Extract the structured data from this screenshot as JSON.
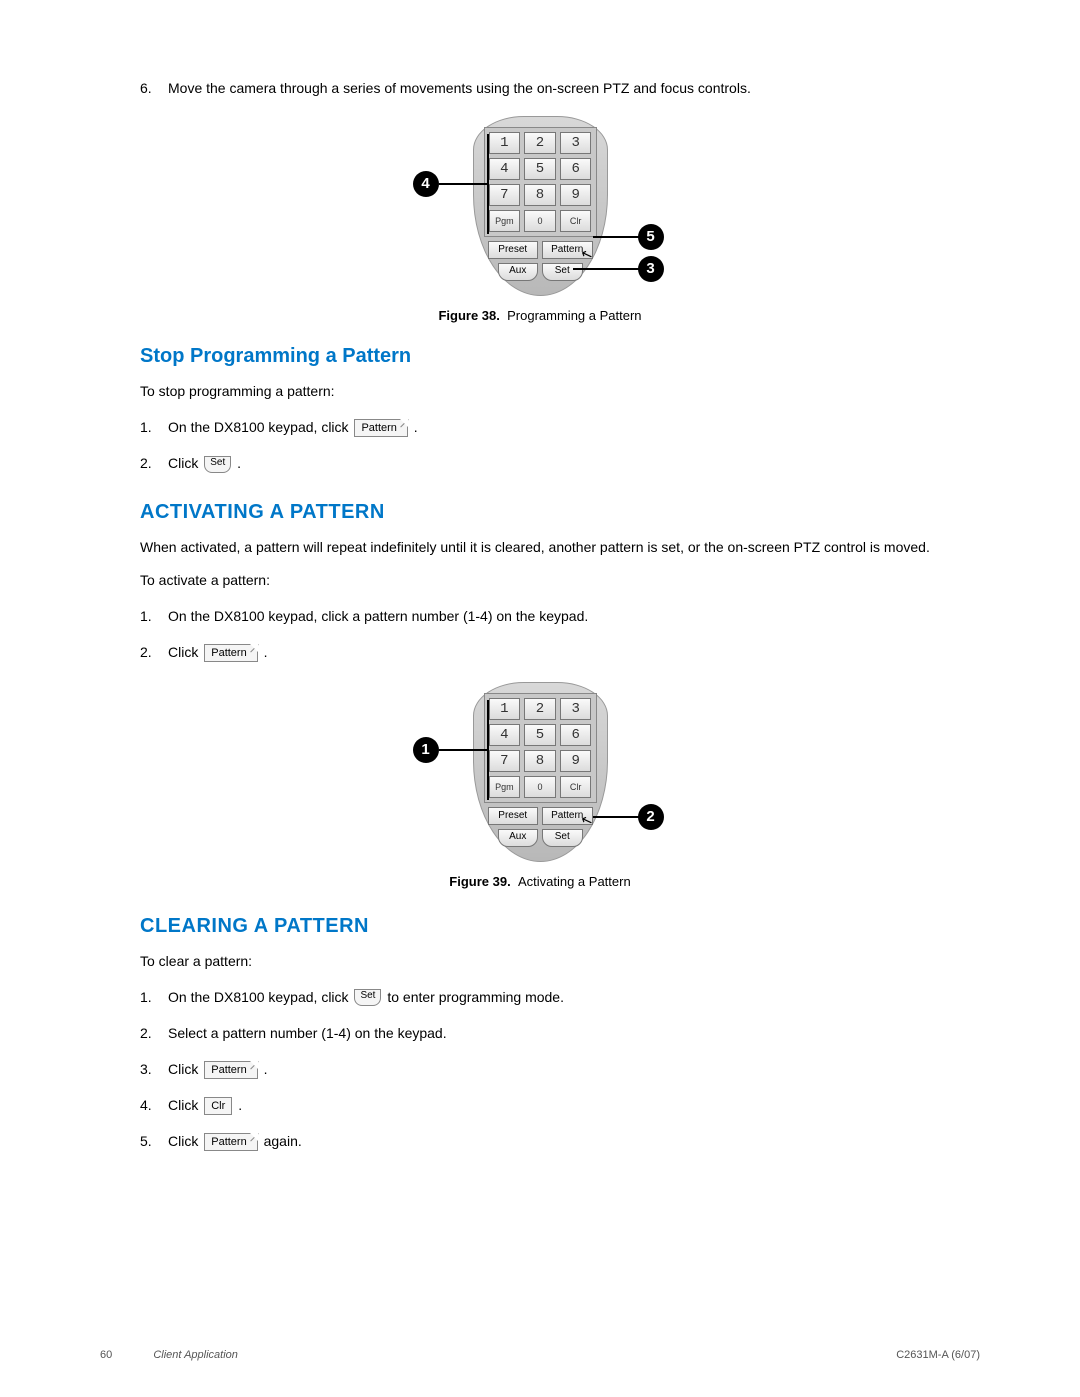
{
  "step6": {
    "num": "6.",
    "text": "Move the camera through a series of movements using the on-screen PTZ and focus controls."
  },
  "fig38": {
    "label": "Figure 38.",
    "caption": "Programming a Pattern",
    "callouts": [
      "4",
      "5",
      "3"
    ]
  },
  "fig39": {
    "label": "Figure 39.",
    "caption": "Activating a Pattern",
    "callouts": [
      "1",
      "2"
    ]
  },
  "keypad": {
    "keys": [
      "1",
      "2",
      "3",
      "4",
      "5",
      "6",
      "7",
      "8",
      "9",
      "Pgm",
      "0",
      "Clr"
    ],
    "row2": [
      "Preset",
      "Pattern"
    ],
    "row3": [
      "Aux",
      "Set"
    ]
  },
  "sec_stop": {
    "title": "Stop Programming a Pattern",
    "intro": "To stop programming a pattern:",
    "s1a": "On the DX8100 keypad, click ",
    "s1b": " .",
    "s2a": "Click ",
    "s2b": " ."
  },
  "sec_act": {
    "title": "ACTIVATING A PATTERN",
    "p1": "When activated, a pattern will repeat indefinitely until it is cleared, another pattern is set, or the on-screen PTZ control is moved.",
    "intro": "To activate a pattern:",
    "s1": "On the DX8100 keypad, click a pattern number (1-4) on the keypad.",
    "s2a": "Click ",
    "s2b": " ."
  },
  "sec_clr": {
    "title": "CLEARING A PATTERN",
    "intro": "To clear a pattern:",
    "s1a": "On the DX8100 keypad, click ",
    "s1b": " to enter programming mode.",
    "s2": "Select a pattern number (1-4) on the keypad.",
    "s3a": "Click ",
    "s3b": " .",
    "s4a": "Click ",
    "s4b": " .",
    "s5a": "Click ",
    "s5b": " again."
  },
  "buttons": {
    "pattern": "Pattern",
    "set": "Set",
    "clr": "Clr"
  },
  "footer": {
    "page": "60",
    "mid": "Client Application",
    "right": "C2631M-A (6/07)"
  },
  "colors": {
    "heading": "#0077c8",
    "text": "#000000",
    "bg": "#ffffff"
  }
}
